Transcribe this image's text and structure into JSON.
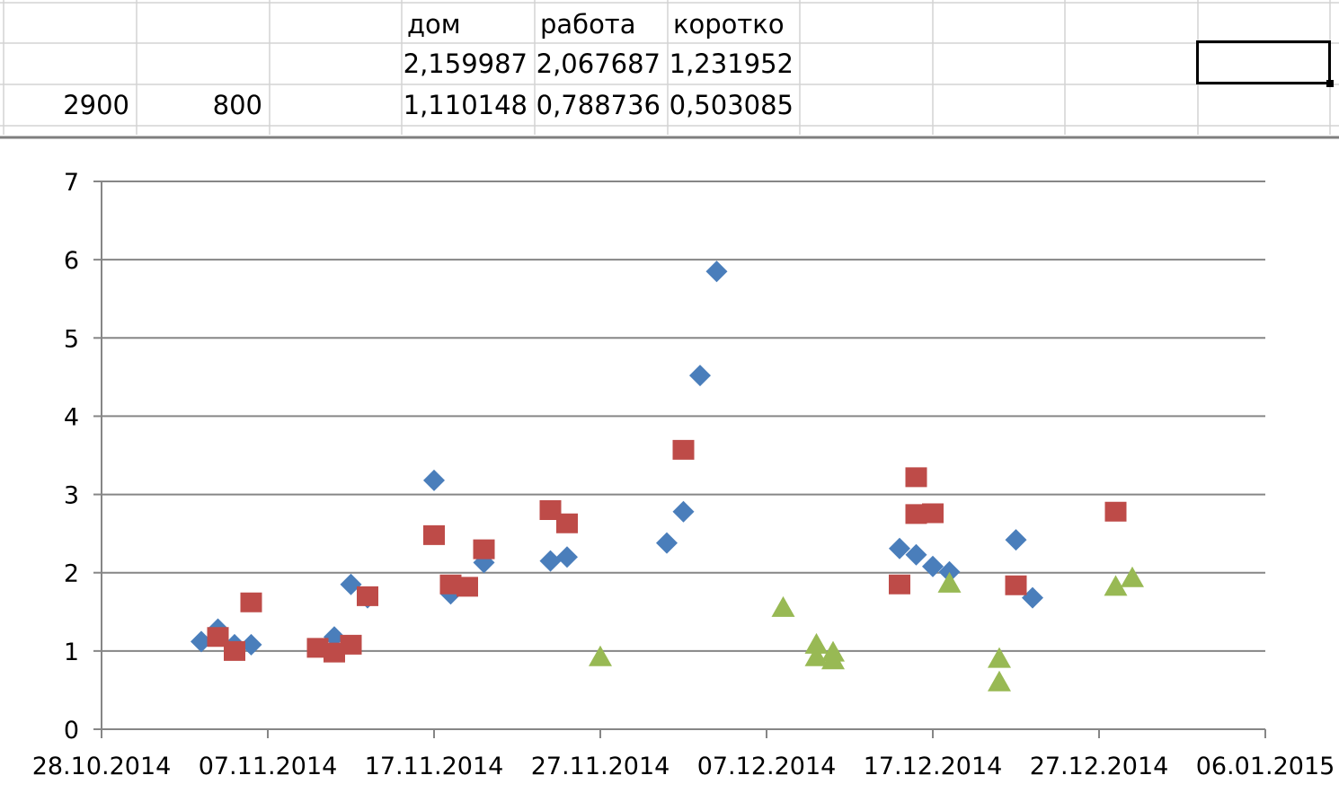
{
  "sheet": {
    "headers": [
      "дом",
      "работа",
      "коротко"
    ],
    "row1": [
      "2,159987",
      "2,067687",
      "1,231952"
    ],
    "row2": {
      "a": "2900",
      "b": "800",
      "values": [
        "1,110148",
        "0,788736",
        "0,503085"
      ]
    }
  },
  "chart_data": {
    "type": "scatter",
    "title": "",
    "xlabel": "",
    "ylabel": "",
    "xlim": [
      "28.10.2014",
      "06.01.2015"
    ],
    "ylim": [
      0,
      7
    ],
    "x_ticks": [
      "28.10.2014",
      "07.11.2014",
      "17.11.2014",
      "27.11.2014",
      "07.12.2014",
      "17.12.2014",
      "27.12.2014",
      "06.01.2015"
    ],
    "y_ticks": [
      "0",
      "1",
      "2",
      "3",
      "4",
      "5",
      "6",
      "7"
    ],
    "grid": "horizontal",
    "legend": "none",
    "series": [
      {
        "marker": "diamond",
        "color": "#4a7ebb",
        "points": [
          [
            "03.11.2014",
            1.12
          ],
          [
            "04.11.2014",
            1.28
          ],
          [
            "05.11.2014",
            1.08
          ],
          [
            "06.11.2014",
            1.08
          ],
          [
            "11.11.2014",
            1.18
          ],
          [
            "12.11.2014",
            1.85
          ],
          [
            "13.11.2014",
            1.68
          ],
          [
            "17.11.2014",
            3.18
          ],
          [
            "18.11.2014",
            1.73
          ],
          [
            "20.11.2014",
            2.13
          ],
          [
            "24.11.2014",
            2.15
          ],
          [
            "25.11.2014",
            2.2
          ],
          [
            "01.12.2014",
            2.38
          ],
          [
            "02.12.2014",
            2.78
          ],
          [
            "03.12.2014",
            4.52
          ],
          [
            "04.12.2014",
            5.85
          ],
          [
            "15.12.2014",
            2.31
          ],
          [
            "16.12.2014",
            2.23
          ],
          [
            "17.12.2014",
            2.08
          ],
          [
            "18.12.2014",
            2.01
          ],
          [
            "22.12.2014",
            2.42
          ],
          [
            "23.12.2014",
            1.68
          ]
        ]
      },
      {
        "marker": "square",
        "color": "#be4b48",
        "points": [
          [
            "04.11.2014",
            1.18
          ],
          [
            "05.11.2014",
            1.0
          ],
          [
            "06.11.2014",
            1.62
          ],
          [
            "10.11.2014",
            1.04
          ],
          [
            "11.11.2014",
            0.98
          ],
          [
            "12.11.2014",
            1.08
          ],
          [
            "13.11.2014",
            1.7
          ],
          [
            "17.11.2014",
            2.48
          ],
          [
            "18.11.2014",
            1.85
          ],
          [
            "19.11.2014",
            1.82
          ],
          [
            "20.11.2014",
            2.3
          ],
          [
            "24.11.2014",
            2.8
          ],
          [
            "25.11.2014",
            2.63
          ],
          [
            "02.12.2014",
            3.57
          ],
          [
            "15.12.2014",
            1.85
          ],
          [
            "16.12.2014",
            3.22
          ],
          [
            "16.12.2014",
            2.75
          ],
          [
            "17.12.2014",
            2.76
          ],
          [
            "22.12.2014",
            1.84
          ],
          [
            "28.12.2014",
            2.78
          ]
        ]
      },
      {
        "marker": "triangle",
        "color": "#98b954",
        "points": [
          [
            "27.11.2014",
            0.92
          ],
          [
            "08.12.2014",
            1.55
          ],
          [
            "10.12.2014",
            1.08
          ],
          [
            "10.12.2014",
            0.92
          ],
          [
            "11.12.2014",
            0.98
          ],
          [
            "11.12.2014",
            0.88
          ],
          [
            "18.12.2014",
            1.86
          ],
          [
            "21.12.2014",
            0.9
          ],
          [
            "21.12.2014",
            0.6
          ],
          [
            "28.12.2014",
            1.82
          ],
          [
            "29.12.2014",
            1.93
          ]
        ]
      }
    ]
  }
}
